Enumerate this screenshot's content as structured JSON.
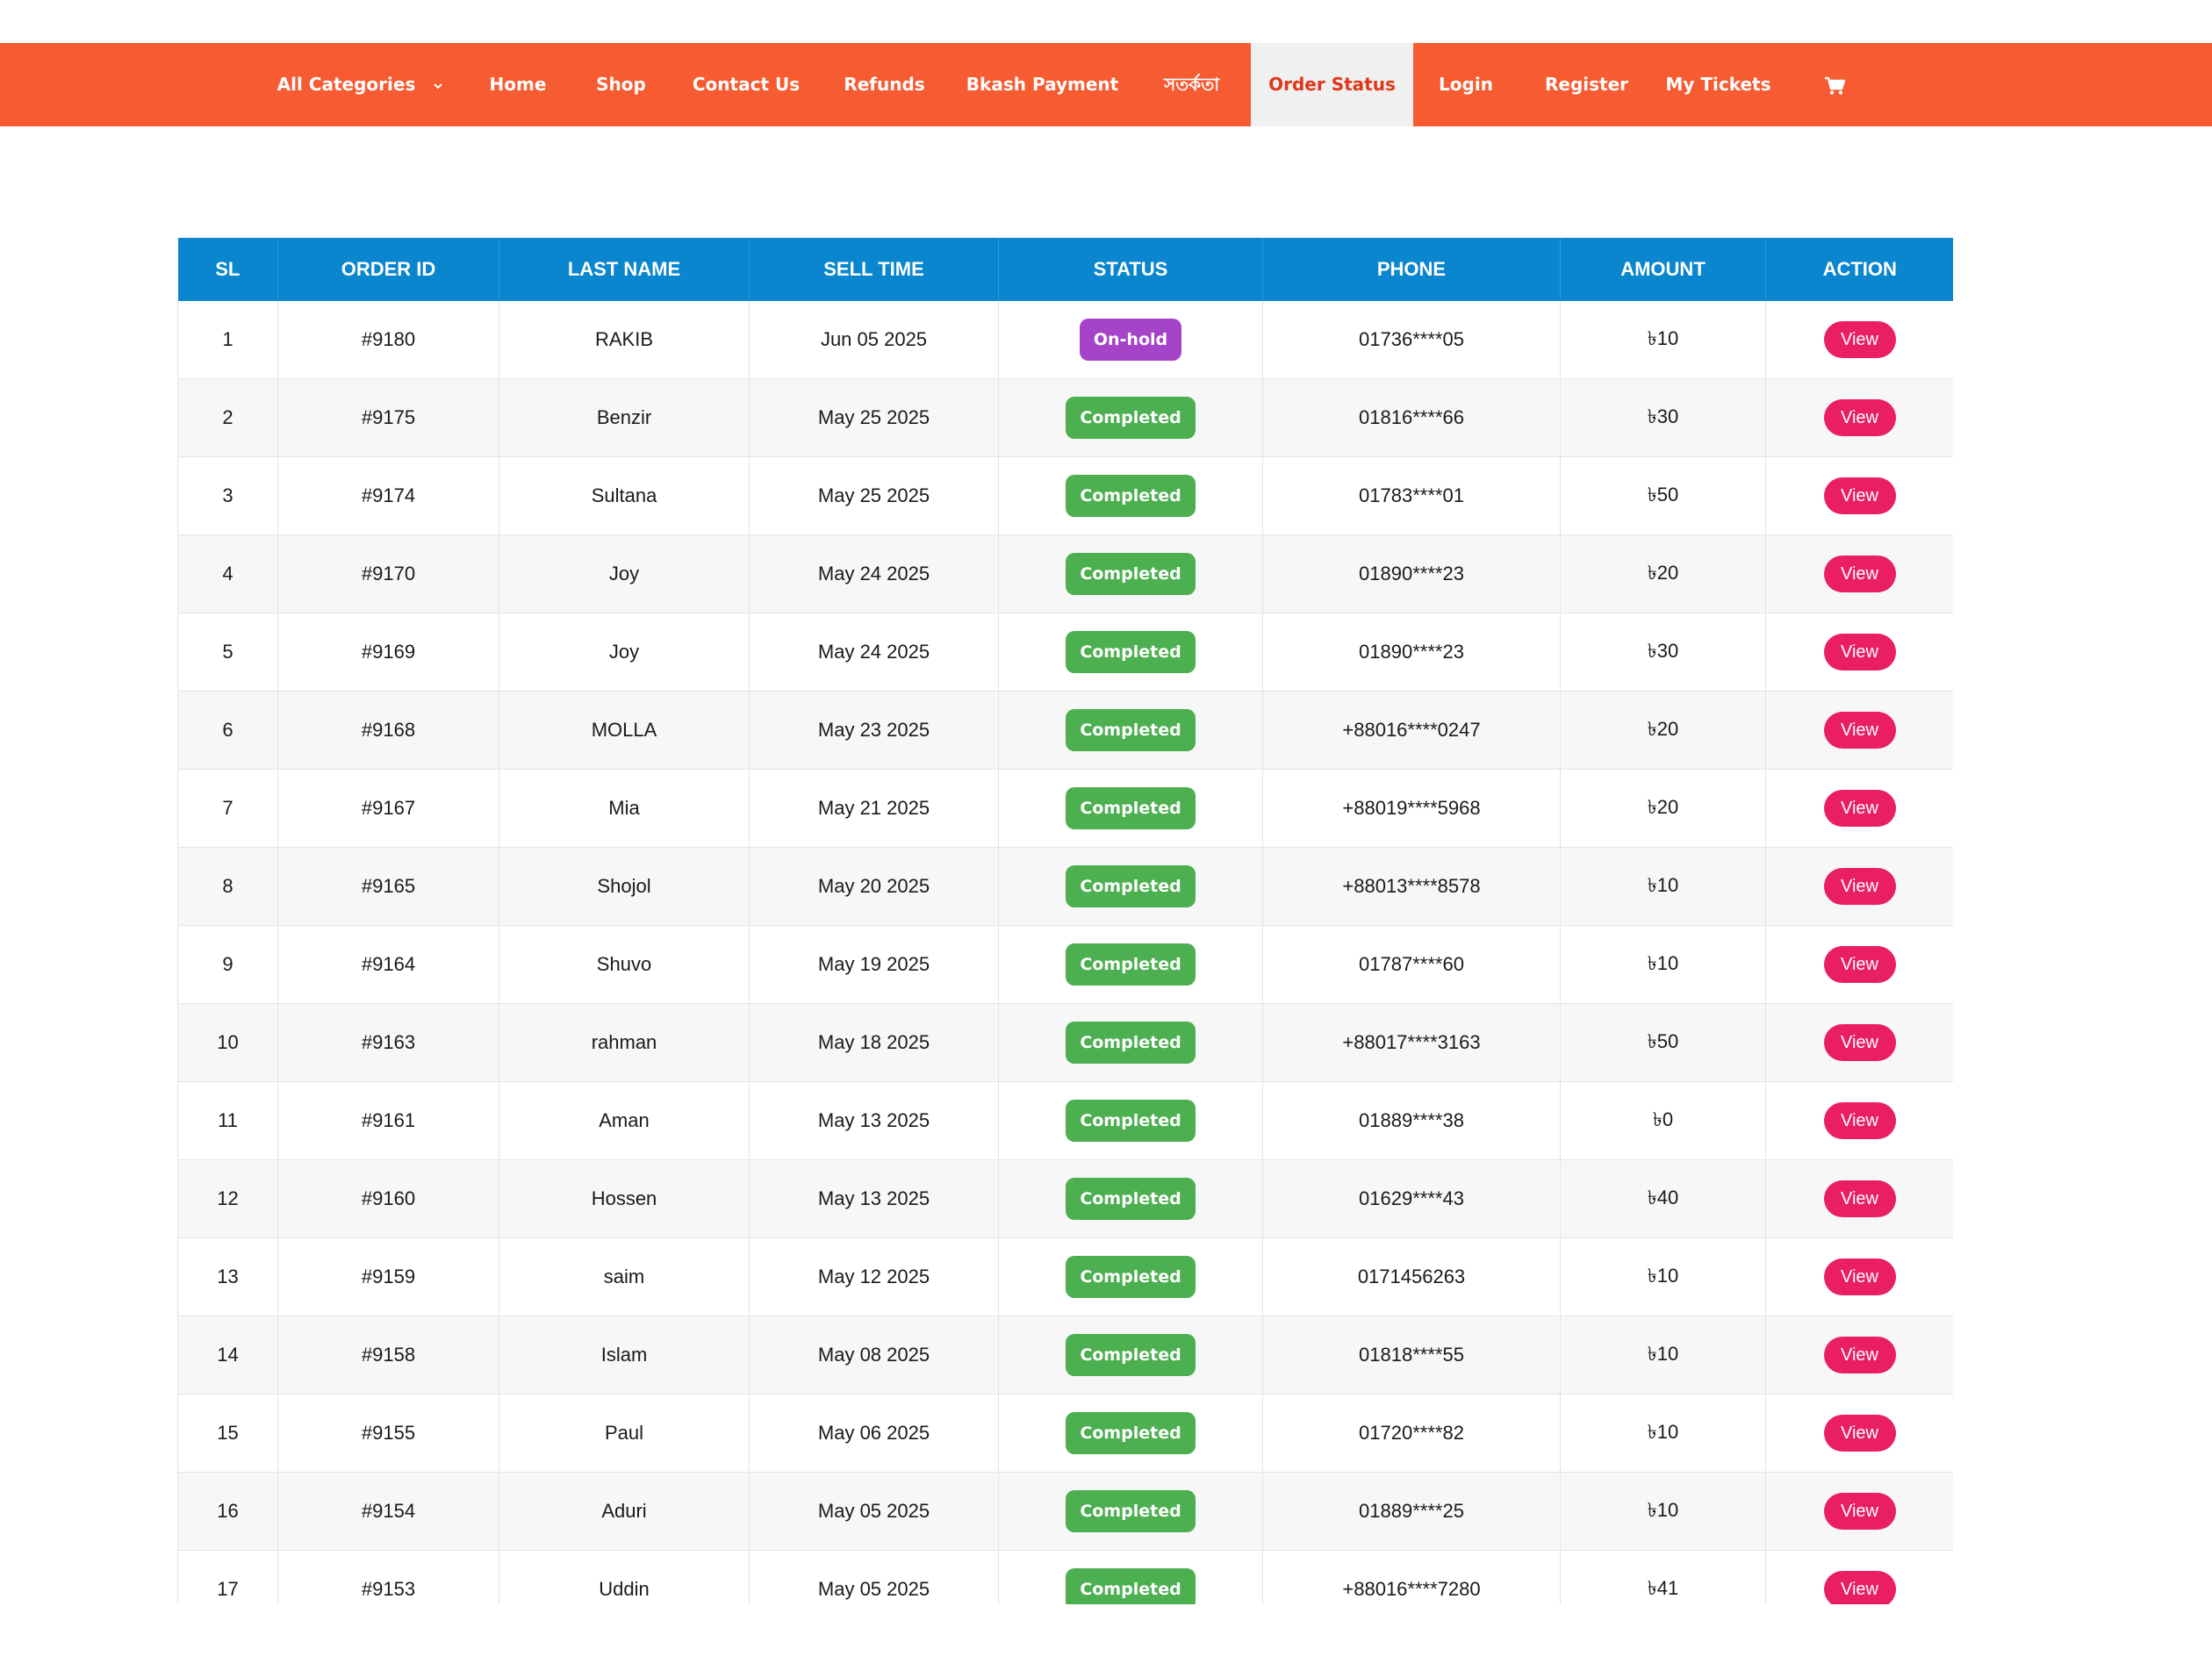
{
  "nav": {
    "items": [
      {
        "label": "All Categories",
        "has_dropdown": true
      },
      {
        "label": "Home"
      },
      {
        "label": "Shop"
      },
      {
        "label": "Contact Us"
      },
      {
        "label": "Refunds"
      },
      {
        "label": "Bkash Payment"
      },
      {
        "label": "সতর্কতা"
      },
      {
        "label": "Order Status",
        "active": true
      },
      {
        "label": "Login"
      },
      {
        "label": "Register"
      },
      {
        "label": "My Tickets"
      }
    ],
    "cart_icon": "cart-icon"
  },
  "colors": {
    "navbar": "#f65b32",
    "table_header": "#0a86cf",
    "on_hold": "#a543c9",
    "completed": "#4caf50",
    "view_button": "#e91e63"
  },
  "table": {
    "headers": [
      "SL",
      "ORDER ID",
      "LAST NAME",
      "SELL TIME",
      "STATUS",
      "PHONE",
      "AMOUNT",
      "ACTION"
    ],
    "action_label": "View",
    "rows": [
      {
        "sl": "1",
        "order_id": "#9180",
        "last_name": "RAKIB",
        "sell_time": "Jun 05 2025",
        "status": "On-hold",
        "phone": "01736****05",
        "amount": "৳10"
      },
      {
        "sl": "2",
        "order_id": "#9175",
        "last_name": "Benzir",
        "sell_time": "May 25 2025",
        "status": "Completed",
        "phone": "01816****66",
        "amount": "৳30"
      },
      {
        "sl": "3",
        "order_id": "#9174",
        "last_name": "Sultana",
        "sell_time": "May 25 2025",
        "status": "Completed",
        "phone": "01783****01",
        "amount": "৳50"
      },
      {
        "sl": "4",
        "order_id": "#9170",
        "last_name": "Joy",
        "sell_time": "May 24 2025",
        "status": "Completed",
        "phone": "01890****23",
        "amount": "৳20"
      },
      {
        "sl": "5",
        "order_id": "#9169",
        "last_name": "Joy",
        "sell_time": "May 24 2025",
        "status": "Completed",
        "phone": "01890****23",
        "amount": "৳30"
      },
      {
        "sl": "6",
        "order_id": "#9168",
        "last_name": "MOLLA",
        "sell_time": "May 23 2025",
        "status": "Completed",
        "phone": "+88016****0247",
        "amount": "৳20"
      },
      {
        "sl": "7",
        "order_id": "#9167",
        "last_name": "Mia",
        "sell_time": "May 21 2025",
        "status": "Completed",
        "phone": "+88019****5968",
        "amount": "৳20"
      },
      {
        "sl": "8",
        "order_id": "#9165",
        "last_name": "Shojol",
        "sell_time": "May 20 2025",
        "status": "Completed",
        "phone": "+88013****8578",
        "amount": "৳10"
      },
      {
        "sl": "9",
        "order_id": "#9164",
        "last_name": "Shuvo",
        "sell_time": "May 19 2025",
        "status": "Completed",
        "phone": "01787****60",
        "amount": "৳10"
      },
      {
        "sl": "10",
        "order_id": "#9163",
        "last_name": "rahman",
        "sell_time": "May 18 2025",
        "status": "Completed",
        "phone": "+88017****3163",
        "amount": "৳50"
      },
      {
        "sl": "11",
        "order_id": "#9161",
        "last_name": "Aman",
        "sell_time": "May 13 2025",
        "status": "Completed",
        "phone": "01889****38",
        "amount": "৳0"
      },
      {
        "sl": "12",
        "order_id": "#9160",
        "last_name": "Hossen",
        "sell_time": "May 13 2025",
        "status": "Completed",
        "phone": "01629****43",
        "amount": "৳40"
      },
      {
        "sl": "13",
        "order_id": "#9159",
        "last_name": "saim",
        "sell_time": "May 12 2025",
        "status": "Completed",
        "phone": "0171456263",
        "amount": "৳10"
      },
      {
        "sl": "14",
        "order_id": "#9158",
        "last_name": "Islam",
        "sell_time": "May 08 2025",
        "status": "Completed",
        "phone": "01818****55",
        "amount": "৳10"
      },
      {
        "sl": "15",
        "order_id": "#9155",
        "last_name": "Paul",
        "sell_time": "May 06 2025",
        "status": "Completed",
        "phone": "01720****82",
        "amount": "৳10"
      },
      {
        "sl": "16",
        "order_id": "#9154",
        "last_name": "Aduri",
        "sell_time": "May 05 2025",
        "status": "Completed",
        "phone": "01889****25",
        "amount": "৳10"
      },
      {
        "sl": "17",
        "order_id": "#9153",
        "last_name": "Uddin",
        "sell_time": "May 05 2025",
        "status": "Completed",
        "phone": "+88016****7280",
        "amount": "৳41"
      }
    ]
  }
}
